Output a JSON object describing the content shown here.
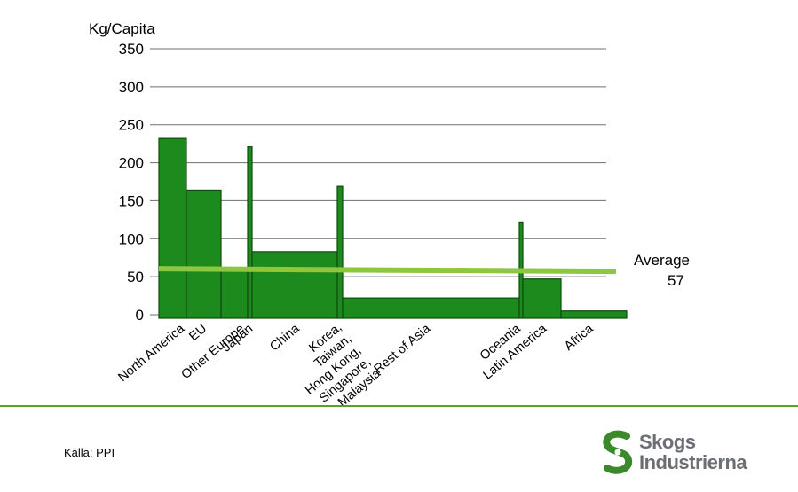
{
  "chart_data": {
    "type": "bar",
    "subtype": "variable-width",
    "ylabel": "Kg/Capita",
    "ylim": [
      0,
      350
    ],
    "yticks": [
      0,
      50,
      100,
      150,
      200,
      250,
      300,
      350
    ],
    "grid": true,
    "bar_color": "#1d8a1d",
    "bar_edge_color": "#0d4d0d",
    "average_line_color": "#8dc63f",
    "categories": [
      {
        "label": "North America",
        "value": 232,
        "weight": 31
      },
      {
        "label": "EU",
        "value": 164,
        "weight": 39
      },
      {
        "label": "Other Europe",
        "value": 58,
        "weight": 30
      },
      {
        "label": "Japan",
        "value": 221,
        "weight": 5
      },
      {
        "label": "China",
        "value": 83,
        "weight": 96
      },
      {
        "label": "Korea, Taiwan, Hong Kong, Singapore, Malaysia",
        "value": 169,
        "weight": 6
      },
      {
        "label": "Rest of Asia",
        "value": 22,
        "weight": 199
      },
      {
        "label": "Oceania",
        "value": 122,
        "weight": 4
      },
      {
        "label": "Latin America",
        "value": 47,
        "weight": 43
      },
      {
        "label": "Africa",
        "value": 5,
        "weight": 74
      }
    ],
    "average": {
      "label": "Average",
      "value": 57
    }
  },
  "source": "Källa: PPI",
  "logo": {
    "line1": "Skogs",
    "line2": "Industrierna",
    "color": "#3a8a2c"
  }
}
